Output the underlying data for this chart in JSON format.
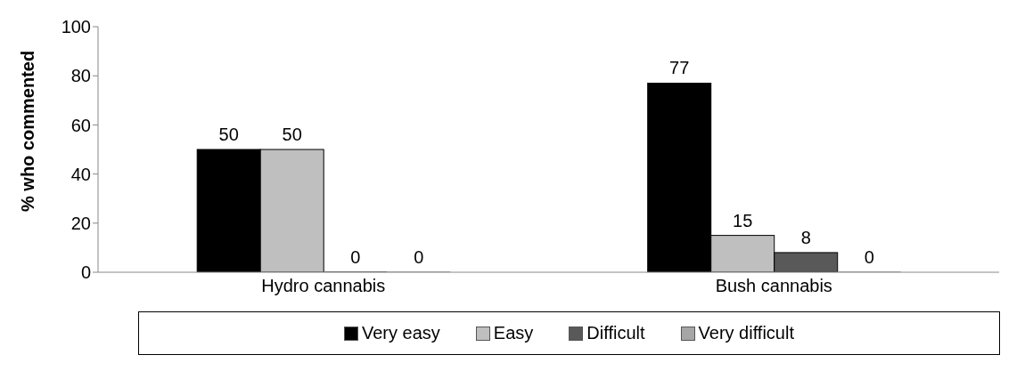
{
  "chart_data": {
    "type": "bar",
    "ylabel": "% who commented",
    "categories": [
      "Hydro cannabis",
      "Bush cannabis"
    ],
    "series": [
      {
        "name": "Very easy",
        "color": "#000000",
        "values": [
          50,
          77
        ]
      },
      {
        "name": "Easy",
        "color": "#bfbfbf",
        "values": [
          50,
          15
        ]
      },
      {
        "name": "Difficult",
        "color": "#595959",
        "values": [
          0,
          8
        ]
      },
      {
        "name": "Very difficult",
        "color": "#a6a6a6",
        "values": [
          0,
          0
        ]
      }
    ],
    "ylim": [
      0,
      100
    ],
    "yticks": [
      0,
      20,
      40,
      60,
      80,
      100
    ],
    "grid": false,
    "legend": "bottom",
    "data_labels": true
  }
}
